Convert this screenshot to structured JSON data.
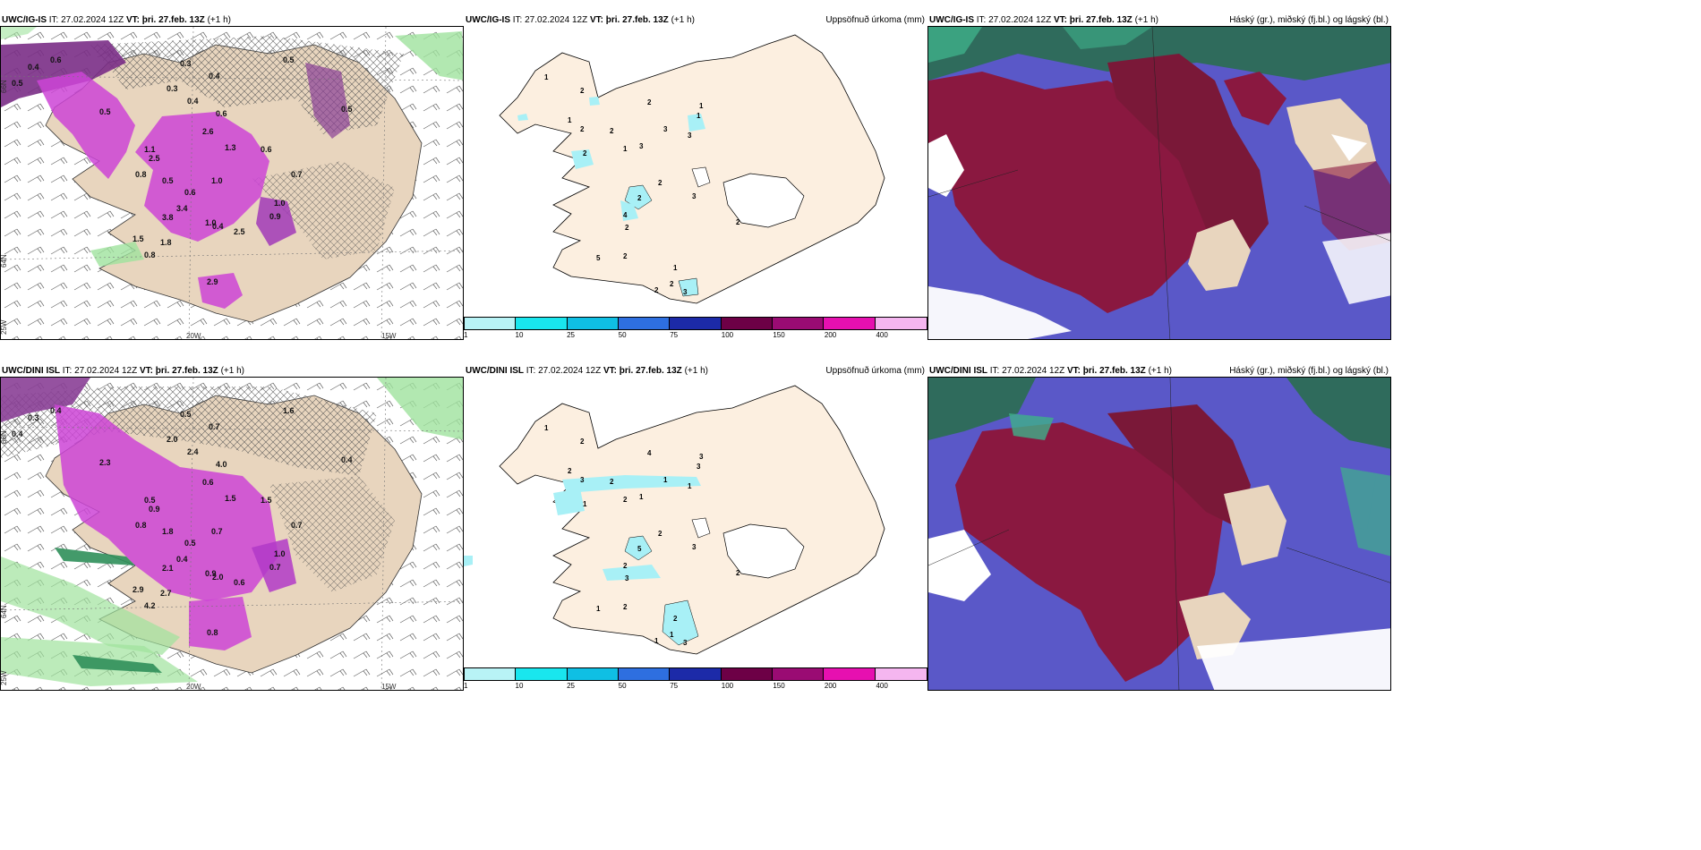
{
  "rows": [
    {
      "model": "UWC/IG-IS",
      "init_label": "IT:",
      "init_time": "27.02.2024 12Z",
      "valid_label": "VT:",
      "valid_time": "þri. 27.feb. 13Z",
      "lead": "(+1 h)",
      "precip_title": "Uppsöfnuð úrkoma (mm)",
      "cloud_title": "Háský (gr.), miðský (fj.bl.) og lágský (bl.)",
      "wind_values": [
        "0.5",
        "0.4",
        "0.6",
        "0.3",
        "0.4",
        "0.5",
        "0.3",
        "0.4",
        "0.6",
        "0.5",
        "1.1",
        "2.5",
        "0.8",
        "2.6",
        "1.3",
        "1.0",
        "0.5",
        "0.6",
        "3.4",
        "3.8",
        "1.0",
        "0.4",
        "1.5",
        "0.8",
        "1.8",
        "0.7",
        "1.0",
        "2.5",
        "0.9",
        "0.6",
        "2.9",
        "0.5"
      ],
      "precip_values": [
        "1",
        "2",
        "1",
        "2",
        "1",
        "2",
        "2",
        "1",
        "3",
        "3",
        "1",
        "2",
        "3",
        "2",
        "2",
        "4",
        "2",
        "3",
        "2",
        "5",
        "2",
        "1",
        "2",
        "3",
        "2"
      ]
    },
    {
      "model": "UWC/DINI ISL",
      "init_label": "IT:",
      "init_time": "27.02.2024 12Z",
      "valid_label": "VT:",
      "valid_time": "þri. 27.feb. 13Z",
      "lead": "(+1 h)",
      "precip_title": "Uppsöfnuð úrkoma (mm)",
      "cloud_title": "Háský (gr.), miðský (fj.bl.) og lágský (bl.)",
      "wind_values": [
        "0.4",
        "0.3",
        "0.4",
        "0.5",
        "0.7",
        "1.6",
        "2.0",
        "2.4",
        "4.0",
        "2.3",
        "0.5",
        "0.9",
        "0.8",
        "0.6",
        "1.5",
        "0.7",
        "1.8",
        "0.5",
        "0.4",
        "2.1",
        "0.9",
        "2.0",
        "2.9",
        "4.2",
        "2.7",
        "0.7",
        "1.0",
        "0.6",
        "0.7",
        "1.5",
        "0.8",
        "0.4"
      ],
      "precip_values": [
        "1",
        "2",
        "2",
        "4",
        "3",
        "3",
        "2",
        "2",
        "1",
        "1",
        "3",
        "1",
        "1",
        "2",
        "5",
        "2",
        "3",
        "3",
        "2",
        "1",
        "2",
        "2",
        "1",
        "3",
        "1"
      ]
    }
  ],
  "axes": {
    "lat_top": "66N",
    "lat_bottom": "64N",
    "lat_left_low": "25W",
    "lon_a": "20W",
    "lon_b": "15W"
  },
  "colorbar": {
    "ticks": [
      "1",
      "10",
      "25",
      "50",
      "75",
      "100",
      "150",
      "200",
      "400"
    ],
    "colors": [
      "#b8f3f6",
      "#19e6ee",
      "#0fbfe4",
      "#2e6fe0",
      "#1c2aa8",
      "#6d0046",
      "#9a0b73",
      "#e610b0",
      "#f5b6f0"
    ]
  }
}
